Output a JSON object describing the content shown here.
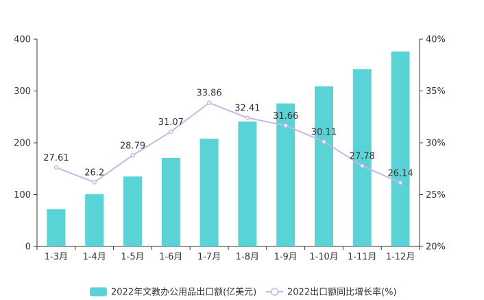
{
  "chart_data": {
    "type": "bar",
    "categories": [
      "1-3月",
      "1-4月",
      "1-5月",
      "1-6月",
      "1-7月",
      "1-8月",
      "1-9月",
      "1-10月",
      "1-11月",
      "1-12月"
    ],
    "series": [
      {
        "name": "2022年文教办公用品出口额(亿美元)",
        "type": "bar",
        "axis": "left",
        "color": "#5ad3d6",
        "values": [
          72,
          101,
          135,
          171,
          208,
          241,
          276,
          309,
          342,
          376
        ]
      },
      {
        "name": "2022出口额同比增长率(%)",
        "type": "line",
        "axis": "right",
        "color": "#c5b8e3",
        "values": [
          27.61,
          26.2,
          28.79,
          31.07,
          33.86,
          32.41,
          31.66,
          30.11,
          27.78,
          26.14
        ],
        "labels": [
          "27.61",
          "26.2",
          "28.79",
          "31.07",
          "33.86",
          "32.41",
          "31.66",
          "30.11",
          "27.78",
          "26.14"
        ]
      }
    ],
    "y_left": {
      "min": 0,
      "max": 400,
      "ticks": [
        "0",
        "100",
        "200",
        "300",
        "400"
      ]
    },
    "y_right": {
      "min": 20,
      "max": 40,
      "ticks": [
        "20%",
        "25%",
        "30%",
        "35%",
        "40%"
      ]
    },
    "grid": false,
    "legend_position": "bottom"
  }
}
